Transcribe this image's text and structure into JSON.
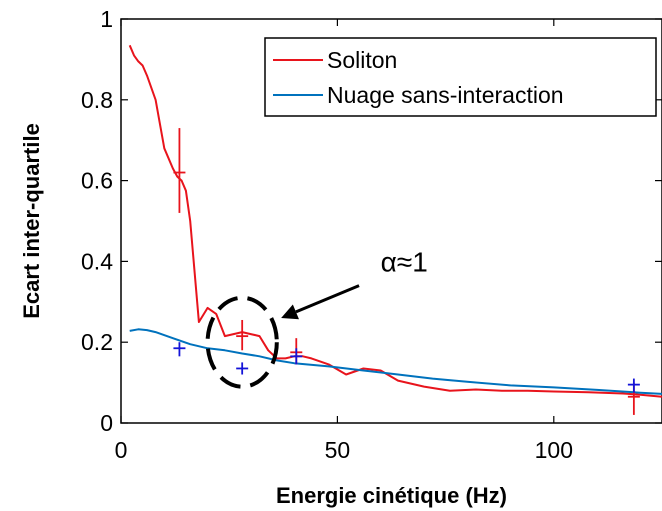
{
  "chart_data": {
    "type": "line",
    "title": "",
    "xlabel": "Energie cinétique (Hz)",
    "ylabel": "Ecart inter-quartile",
    "xlim": [
      0,
      125
    ],
    "ylim": [
      0,
      1
    ],
    "xticks": [
      0,
      50,
      100
    ],
    "yticks": [
      0,
      0.2,
      0.4,
      0.6,
      0.8,
      1
    ],
    "xtick_labels": [
      "0",
      "50",
      "100"
    ],
    "ytick_labels": [
      "0",
      "0.2",
      "0.4",
      "0.6",
      "0.8",
      "1"
    ],
    "grid": false,
    "legend_position": "top-right",
    "series": [
      {
        "name": "Soliton",
        "color": "#e8141c",
        "x": [
          2,
          3,
          4,
          5,
          6,
          8,
          10,
          12,
          13,
          14,
          15,
          16,
          18,
          20,
          22,
          24,
          26,
          28,
          30,
          32,
          34,
          36,
          38,
          40,
          42,
          44,
          48,
          52,
          56,
          60,
          64,
          70,
          76,
          82,
          88,
          94,
          100,
          108,
          116,
          120,
          125
        ],
        "y": [
          0.935,
          0.91,
          0.895,
          0.885,
          0.86,
          0.8,
          0.68,
          0.63,
          0.61,
          0.6,
          0.575,
          0.5,
          0.25,
          0.285,
          0.27,
          0.215,
          0.22,
          0.225,
          0.22,
          0.215,
          0.18,
          0.16,
          0.16,
          0.165,
          0.165,
          0.16,
          0.145,
          0.12,
          0.135,
          0.13,
          0.105,
          0.09,
          0.08,
          0.083,
          0.08,
          0.08,
          0.078,
          0.076,
          0.073,
          0.07,
          0.065
        ]
      },
      {
        "name": "Nuage sans-interaction",
        "color": "#0072bd",
        "x": [
          2,
          4,
          6,
          8,
          12,
          16,
          20,
          24,
          28,
          32,
          36,
          40,
          48,
          56,
          64,
          72,
          80,
          90,
          100,
          110,
          120,
          125
        ],
        "y": [
          0.228,
          0.232,
          0.23,
          0.225,
          0.21,
          0.195,
          0.185,
          0.18,
          0.172,
          0.165,
          0.155,
          0.148,
          0.14,
          0.13,
          0.12,
          0.11,
          0.102,
          0.093,
          0.088,
          0.082,
          0.075,
          0.072
        ]
      }
    ],
    "error_points": [
      {
        "series": "Soliton",
        "color": "#e8141c",
        "x": 13.5,
        "y": 0.62,
        "low": 0.52,
        "high": 0.73
      },
      {
        "series": "Soliton",
        "color": "#e8141c",
        "x": 28,
        "y": 0.215,
        "low": 0.18,
        "high": 0.255
      },
      {
        "series": "Soliton",
        "color": "#e8141c",
        "x": 40.5,
        "y": 0.175,
        "low": 0.145,
        "high": 0.21
      },
      {
        "series": "Soliton",
        "color": "#e8141c",
        "x": 118.5,
        "y": 0.065,
        "low": 0.02,
        "high": 0.1
      },
      {
        "series": "Nuage sans-interaction",
        "color": "#1414d8",
        "x": 13.5,
        "y": 0.185,
        "low": 0.165,
        "high": 0.2
      },
      {
        "series": "Nuage sans-interaction",
        "color": "#1414d8",
        "x": 28,
        "y": 0.135,
        "low": 0.12,
        "high": 0.15
      },
      {
        "series": "Nuage sans-interaction",
        "color": "#1414d8",
        "x": 40.5,
        "y": 0.165,
        "low": 0.145,
        "high": 0.185
      },
      {
        "series": "Nuage sans-interaction",
        "color": "#1414d8",
        "x": 118.5,
        "y": 0.095,
        "low": 0.075,
        "high": 0.11
      }
    ],
    "annotation": {
      "text": "α≈1",
      "circle_center": [
        28,
        0.2
      ],
      "circle_radius_x": 8,
      "circle_radius_y": 0.11,
      "arrow_from": [
        55,
        0.34
      ],
      "arrow_to": [
        37,
        0.26
      ],
      "text_pos": [
        60,
        0.4
      ]
    }
  }
}
